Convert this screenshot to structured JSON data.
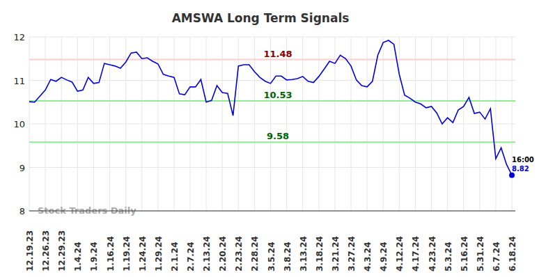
{
  "chart_data": {
    "type": "line",
    "title": "AMSWA Long Term Signals",
    "watermark": "Stock Traders Daily",
    "categories": [
      "12.19.23",
      null,
      null,
      "12.26.23",
      null,
      null,
      "12.29.23",
      null,
      null,
      "1.4.24",
      null,
      null,
      "1.9.24",
      null,
      null,
      "1.16.24",
      null,
      null,
      "1.19.24",
      null,
      null,
      "1.24.24",
      null,
      null,
      "1.29.24",
      null,
      null,
      "2.1.24",
      null,
      null,
      "2.7.24",
      null,
      null,
      "2.13.24",
      null,
      null,
      "2.20.24",
      null,
      null,
      "2.23.24",
      null,
      null,
      "2.28.24",
      null,
      null,
      "3.5.24",
      null,
      null,
      "3.8.24",
      null,
      null,
      "3.13.24",
      null,
      null,
      "3.18.24",
      null,
      null,
      "3.21.24",
      null,
      null,
      "3.27.24",
      null,
      null,
      "4.3.24",
      null,
      null,
      "4.9.24",
      null,
      null,
      "4.12.24",
      null,
      null,
      "4.17.24",
      null,
      null,
      "4.23.24",
      null,
      null,
      "5.3.24",
      null,
      null,
      "5.16.24",
      null,
      null,
      "5.31.24",
      null,
      null,
      "6.7.24",
      null,
      null,
      "6.18.24"
    ],
    "series": [
      {
        "name": "AMSWA",
        "color": "#0000dd",
        "values": [
          10.51,
          10.5,
          10.64,
          10.78,
          11.02,
          10.98,
          11.07,
          11.01,
          10.96,
          10.75,
          10.78,
          11.07,
          10.93,
          10.95,
          11.39,
          11.36,
          11.33,
          11.28,
          11.42,
          11.63,
          11.65,
          11.5,
          11.52,
          11.44,
          11.38,
          11.14,
          11.1,
          11.07,
          10.69,
          10.67,
          10.85,
          10.85,
          11.02,
          10.5,
          10.54,
          10.88,
          10.72,
          10.7,
          10.19,
          11.33,
          11.36,
          11.36,
          11.2,
          11.07,
          10.98,
          10.93,
          11.1,
          11.1,
          11.01,
          11.02,
          11.04,
          11.09,
          10.98,
          10.95,
          11.09,
          11.26,
          11.44,
          11.39,
          11.58,
          11.5,
          11.33,
          11.01,
          10.88,
          10.85,
          10.98,
          11.58,
          11.87,
          11.92,
          11.83,
          11.14,
          10.66,
          10.59,
          10.5,
          10.46,
          10.37,
          10.4,
          10.25,
          10.0,
          10.14,
          10.03,
          10.32,
          10.4,
          10.61,
          10.24,
          10.27,
          10.11,
          10.35,
          9.2,
          9.45,
          9.07,
          8.82
        ]
      }
    ],
    "reference_lines": [
      {
        "value": 11.48,
        "color": "#ffcccc",
        "label_color": "#8b0000"
      },
      {
        "value": 10.53,
        "color": "#90ee90",
        "label_color": "#006400"
      },
      {
        "value": 9.58,
        "color": "#90ee90",
        "label_color": "#006400"
      }
    ],
    "last_point_time": "16:00",
    "ylim": [
      8,
      12
    ],
    "yticks": [
      8,
      9,
      10,
      11,
      12
    ],
    "grid": true
  }
}
